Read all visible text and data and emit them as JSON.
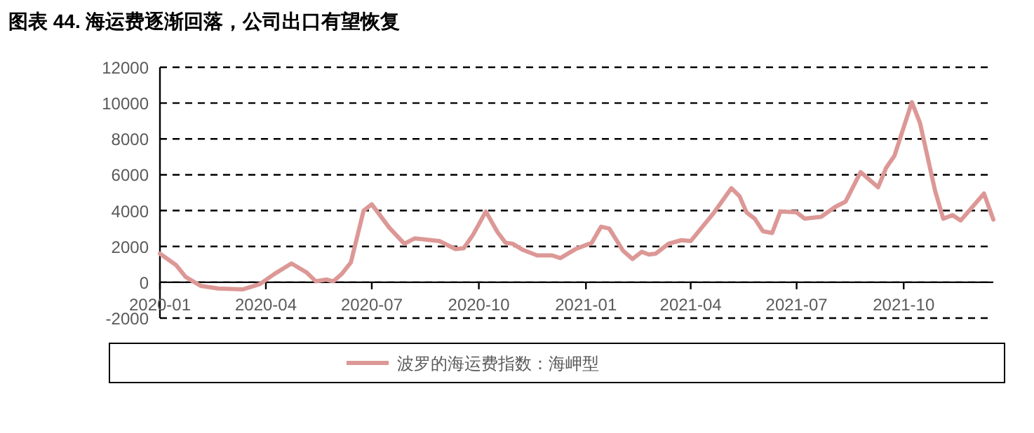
{
  "chart_data": {
    "type": "line",
    "title": "图表 44. 海运费逐渐回落，公司出口有望恢复",
    "x": [
      "2020-01-01",
      "2020-01-15",
      "2020-01-23",
      "2020-02-05",
      "2020-02-20",
      "2020-03-12",
      "2020-03-27",
      "2020-04-08",
      "2020-04-23",
      "2020-05-06",
      "2020-05-14",
      "2020-05-23",
      "2020-05-29",
      "2020-06-05",
      "2020-06-13",
      "2020-06-24",
      "2020-07-01",
      "2020-07-16",
      "2020-07-29",
      "2020-08-07",
      "2020-08-28",
      "2020-09-11",
      "2020-09-18",
      "2020-09-26",
      "2020-10-07",
      "2020-10-17",
      "2020-10-24",
      "2020-10-30",
      "2020-11-08",
      "2020-11-20",
      "2020-12-03",
      "2020-12-10",
      "2020-12-23",
      "2021-01-06",
      "2021-01-14",
      "2021-01-21",
      "2021-02-02",
      "2021-02-10",
      "2021-02-18",
      "2021-02-24",
      "2021-03-02",
      "2021-03-13",
      "2021-03-24",
      "2021-04-01",
      "2021-04-20",
      "2021-05-06",
      "2021-05-13",
      "2021-05-19",
      "2021-05-26",
      "2021-06-02",
      "2021-06-10",
      "2021-06-17",
      "2021-07-01",
      "2021-07-08",
      "2021-07-22",
      "2021-08-03",
      "2021-08-12",
      "2021-08-25",
      "2021-09-09",
      "2021-09-16",
      "2021-09-23",
      "2021-10-08",
      "2021-10-15",
      "2021-10-28",
      "2021-11-04",
      "2021-11-12",
      "2021-11-19",
      "2021-12-09",
      "2021-12-17"
    ],
    "series": [
      {
        "name": "波罗的海运费指数：海岬型",
        "color": "#dc9896",
        "values": [
          1600,
          950,
          300,
          -200,
          -350,
          -400,
          -100,
          450,
          1050,
          550,
          50,
          150,
          50,
          450,
          1100,
          4000,
          4350,
          3050,
          2150,
          2450,
          2300,
          1850,
          1900,
          2650,
          3950,
          2800,
          2200,
          2150,
          1800,
          1500,
          1500,
          1350,
          1850,
          2200,
          3100,
          3000,
          1750,
          1300,
          1700,
          1550,
          1600,
          2150,
          2350,
          2300,
          3800,
          5250,
          4800,
          3900,
          3550,
          2850,
          2750,
          3950,
          3900,
          3550,
          3650,
          4200,
          4500,
          6150,
          5300,
          6400,
          7050,
          10050,
          8900,
          5100,
          3550,
          3750,
          3450,
          4950,
          3500
        ]
      }
    ],
    "xlim": [
      "2020-01-01",
      "2021-12-17"
    ],
    "xticks": [
      {
        "value": "2020-01-01",
        "label": "2020-01"
      },
      {
        "value": "2020-04-01",
        "label": "2020-04"
      },
      {
        "value": "2020-07-01",
        "label": "2020-07"
      },
      {
        "value": "2020-10-01",
        "label": "2020-10"
      },
      {
        "value": "2021-01-01",
        "label": "2021-01"
      },
      {
        "value": "2021-04-01",
        "label": "2021-04"
      },
      {
        "value": "2021-07-01",
        "label": "2021-07"
      },
      {
        "value": "2021-10-01",
        "label": "2021-10"
      }
    ],
    "ylim": [
      -2000,
      12000
    ],
    "yticks": [
      -2000,
      0,
      2000,
      4000,
      6000,
      8000,
      10000,
      12000
    ],
    "grid": "y",
    "legend": "bottom"
  }
}
